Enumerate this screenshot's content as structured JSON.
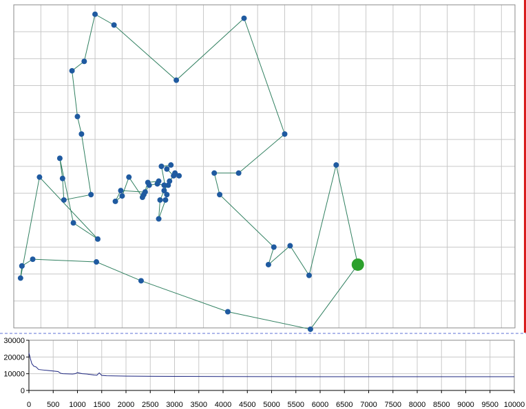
{
  "colors": {
    "route_line": "#2f7f5f",
    "city_point": "#1f5aa0",
    "current_city": "#2ca02c",
    "grid": "#c8c8c8",
    "frame": "#8a8a8a",
    "progress_line": "#1a237e",
    "divider": "#5b6fd6",
    "window_edge": "#d81e1e"
  },
  "chart_data": [
    {
      "type": "scatter",
      "title": "",
      "xlabel": "",
      "ylabel": "",
      "connected": true,
      "xlim": [
        0,
        18.5
      ],
      "ylim": [
        0,
        12
      ],
      "grid": true,
      "points": [
        [
          0.3,
          2.3
        ],
        [
          0.25,
          1.85
        ],
        [
          0.95,
          5.6
        ],
        [
          3.1,
          3.3
        ],
        [
          2.2,
          3.9
        ],
        [
          1.7,
          6.3
        ],
        [
          1.8,
          5.55
        ],
        [
          1.85,
          4.75
        ],
        [
          2.85,
          4.95
        ],
        [
          2.5,
          7.2
        ],
        [
          2.35,
          7.85
        ],
        [
          2.15,
          9.55
        ],
        [
          2.6,
          9.9
        ],
        [
          3.0,
          11.65
        ],
        [
          3.7,
          11.25
        ],
        [
          6.0,
          9.2
        ],
        [
          8.5,
          11.5
        ],
        [
          10.0,
          7.2
        ],
        [
          8.3,
          5.75
        ],
        [
          7.4,
          5.75
        ],
        [
          7.6,
          4.95
        ],
        [
          9.6,
          3.0
        ],
        [
          9.4,
          2.35
        ],
        [
          10.2,
          3.05
        ],
        [
          10.9,
          1.95
        ],
        [
          11.9,
          6.05
        ],
        [
          12.7,
          2.35
        ],
        [
          10.95,
          -0.05
        ],
        [
          7.9,
          0.6
        ],
        [
          4.7,
          1.75
        ],
        [
          3.05,
          2.45
        ],
        [
          0.7,
          2.55
        ],
        [
          0.3,
          2.3
        ]
      ],
      "current_point": [
        12.7,
        2.35
      ],
      "inner_points": [
        [
          5.35,
          5.45
        ],
        [
          4.95,
          5.4
        ],
        [
          4.8,
          4.95
        ],
        [
          4.75,
          4.85
        ],
        [
          4.25,
          5.6
        ],
        [
          4.0,
          4.9
        ],
        [
          3.75,
          4.7
        ],
        [
          3.95,
          5.1
        ],
        [
          4.85,
          5.05
        ],
        [
          5.0,
          5.3
        ],
        [
          5.3,
          5.35
        ],
        [
          5.55,
          5.3
        ],
        [
          5.7,
          5.3
        ],
        [
          5.75,
          5.45
        ],
        [
          5.9,
          5.65
        ],
        [
          5.65,
          5.9
        ],
        [
          5.8,
          6.05
        ],
        [
          5.45,
          6.0
        ],
        [
          5.65,
          4.95
        ],
        [
          5.6,
          4.75
        ],
        [
          5.35,
          4.05
        ],
        [
          5.4,
          4.75
        ],
        [
          5.55,
          5.1
        ],
        [
          5.95,
          5.75
        ],
        [
          6.1,
          5.65
        ]
      ]
    },
    {
      "type": "line",
      "title": "",
      "xlabel": "",
      "ylabel": "",
      "xlim": [
        0,
        10000
      ],
      "ylim": [
        0,
        30000
      ],
      "xticks": [
        "0",
        "500",
        "1000",
        "1500",
        "2000",
        "2500",
        "3000",
        "3500",
        "4000",
        "4500",
        "5000",
        "5500",
        "6000",
        "6500",
        "7000",
        "7500",
        "8000",
        "8500",
        "9000",
        "9500",
        "10000"
      ],
      "yticks": [
        "0",
        "10000",
        "20000",
        "30000"
      ],
      "grid": true,
      "series": [
        {
          "x": [
            0,
            30,
            60,
            100,
            150,
            200,
            300,
            400,
            500,
            600,
            650,
            700,
            800,
            900,
            950,
            1000,
            1100,
            1200,
            1300,
            1350,
            1400,
            1450,
            1500,
            1600,
            2000,
            2500,
            3000,
            3500,
            4000,
            5000,
            6000,
            7000,
            8000,
            9000,
            10000
          ],
          "y": [
            22500,
            19000,
            16000,
            14500,
            14000,
            12500,
            12200,
            11900,
            11600,
            11300,
            10300,
            10000,
            9900,
            9800,
            10000,
            10600,
            10000,
            9800,
            9400,
            9200,
            9100,
            10500,
            9000,
            8800,
            8600,
            8500,
            8400,
            8350,
            8300,
            8250,
            8200,
            8200,
            8200,
            8200,
            8200
          ]
        }
      ]
    }
  ]
}
